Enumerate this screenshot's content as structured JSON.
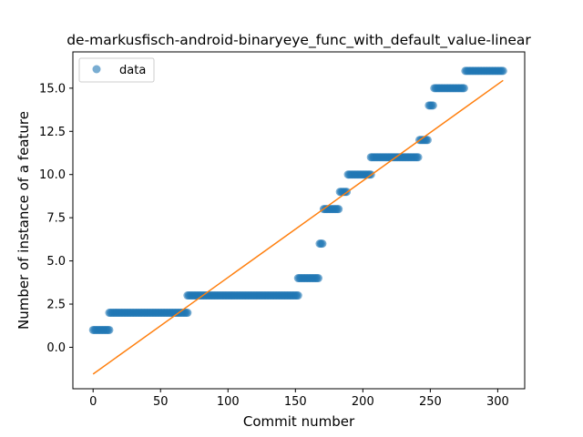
{
  "chart_data": {
    "type": "scatter",
    "title": "de-markusfisch-android-binaryeye_func_with_default_value-linear",
    "xlabel": "Commit number",
    "ylabel": "Number of instance of a feature",
    "xlim": [
      -15,
      320
    ],
    "ylim": [
      -2.4,
      17.1
    ],
    "xticks": [
      0,
      50,
      100,
      150,
      200,
      250,
      300
    ],
    "xtick_labels": [
      "0",
      "50",
      "100",
      "150",
      "200",
      "250",
      "300"
    ],
    "yticks": [
      0.0,
      2.5,
      5.0,
      7.5,
      10.0,
      12.5,
      15.0
    ],
    "ytick_labels": [
      "0.0",
      "2.5",
      "5.0",
      "7.5",
      "10.0",
      "12.5",
      "15.0"
    ],
    "grid": false,
    "legend": {
      "placement": "upper-left",
      "entries": [
        "data"
      ]
    },
    "series": [
      {
        "name": "data",
        "kind": "points",
        "color": "#1f77b4",
        "alpha": 0.6,
        "segments": [
          {
            "x_start": 0,
            "x_end": 12,
            "y": 1
          },
          {
            "x_start": 12,
            "x_end": 70,
            "y": 2
          },
          {
            "x_start": 70,
            "x_end": 152,
            "y": 3
          },
          {
            "x_start": 152,
            "x_end": 167,
            "y": 4
          },
          {
            "x_start": 168,
            "x_end": 170,
            "y": 6
          },
          {
            "x_start": 171,
            "x_end": 182,
            "y": 8
          },
          {
            "x_start": 183,
            "x_end": 188,
            "y": 9
          },
          {
            "x_start": 189,
            "x_end": 206,
            "y": 10
          },
          {
            "x_start": 206,
            "x_end": 241,
            "y": 11
          },
          {
            "x_start": 242,
            "x_end": 248,
            "y": 12
          },
          {
            "x_start": 249,
            "x_end": 252,
            "y": 14
          },
          {
            "x_start": 253,
            "x_end": 275,
            "y": 15
          },
          {
            "x_start": 276,
            "x_end": 304,
            "y": 16
          }
        ]
      },
      {
        "name": "",
        "kind": "line",
        "color": "#ff7f0e",
        "x": [
          0,
          304
        ],
        "y": [
          -1.55,
          15.45
        ]
      }
    ]
  }
}
